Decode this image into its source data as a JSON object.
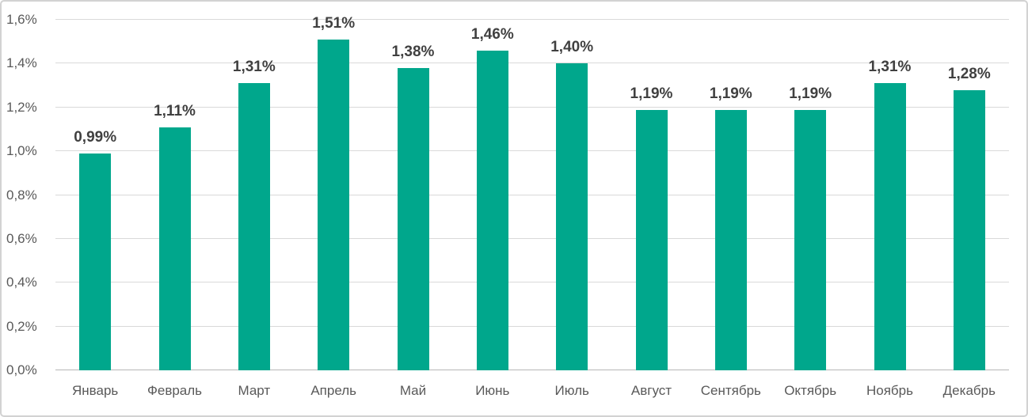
{
  "chart_data": {
    "type": "bar",
    "categories": [
      "Январь",
      "Февраль",
      "Март",
      "Апрель",
      "Май",
      "Июнь",
      "Июль",
      "Август",
      "Сентябрь",
      "Октябрь",
      "Ноябрь",
      "Декабрь"
    ],
    "values": [
      0.99,
      1.11,
      1.31,
      1.51,
      1.38,
      1.46,
      1.4,
      1.19,
      1.19,
      1.19,
      1.31,
      1.28
    ],
    "value_labels": [
      "0,99%",
      "1,11%",
      "1,31%",
      "1,51%",
      "1,38%",
      "1,46%",
      "1,40%",
      "1,19%",
      "1,19%",
      "1,19%",
      "1,31%",
      "1,28%"
    ],
    "title": "",
    "xlabel": "",
    "ylabel": "",
    "ylim": [
      0,
      1.6
    ],
    "ytick_step": 0.2,
    "ytick_labels": [
      "0,0%",
      "0,2%",
      "0,4%",
      "0,6%",
      "0,8%",
      "1,0%",
      "1,2%",
      "1,4%",
      "1,6%"
    ],
    "grid": true,
    "legend": "none",
    "bar_color": "#00A78C",
    "value_label_color": "#404040",
    "axis_text_color": "#595959",
    "gridline_color": "#d9d9d9",
    "axis_line_color": "#b7b7b7",
    "frame_border_color": "#d2d2d2"
  }
}
